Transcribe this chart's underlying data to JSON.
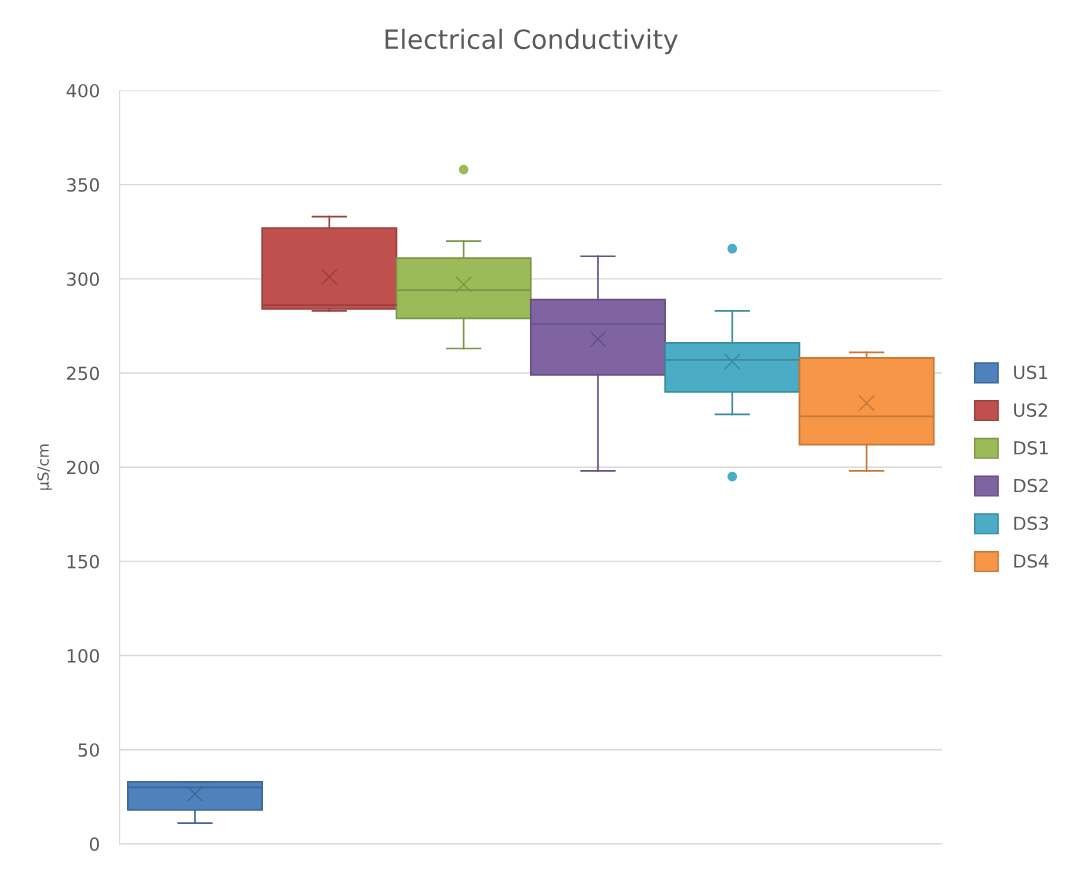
{
  "chart_data": {
    "type": "box",
    "title": "Electrical Conductivity",
    "ylabel": "µS/cm",
    "categories": [
      null
    ],
    "series": [
      {
        "name": "US1",
        "color": "#4f81bd",
        "boxes": [
          {
            "low": 11,
            "q1": 18,
            "median": 30,
            "q3": 33,
            "high": 33,
            "mean": 26.6
          }
        ]
      },
      {
        "name": "US2",
        "color": "#c0504d",
        "boxes": [
          {
            "low": 283,
            "q1": 284,
            "median": 286,
            "q3": 327,
            "high": 333,
            "mean": 301
          }
        ]
      },
      {
        "name": "DS1",
        "color": "#9bbb59",
        "boxes": [
          {
            "low": 263,
            "q1": 279,
            "median": 294,
            "q3": 311,
            "high": 320,
            "mean": 297,
            "outliers": [
              358
            ]
          }
        ]
      },
      {
        "name": "DS2",
        "color": "#8064a2",
        "boxes": [
          {
            "low": 198,
            "q1": 249,
            "median": 276,
            "q3": 289,
            "high": 312,
            "mean": 268
          }
        ]
      },
      {
        "name": "DS3",
        "color": "#4bacc6",
        "boxes": [
          {
            "low": 228,
            "q1": 240,
            "median": 257,
            "q3": 266,
            "high": 283,
            "mean": 256,
            "outliers": [
              316,
              195
            ]
          }
        ]
      },
      {
        "name": "DS4",
        "color": "#f79646",
        "boxes": [
          {
            "low": 198,
            "q1": 212,
            "median": 227,
            "q3": 258,
            "high": 261,
            "mean": 234
          }
        ]
      }
    ],
    "ylim": [
      0,
      400
    ],
    "yticks": [
      0,
      50,
      100,
      150,
      200,
      250,
      300,
      350,
      400
    ],
    "grid": "y",
    "legend": "right",
    "tick_labels": "y"
  }
}
